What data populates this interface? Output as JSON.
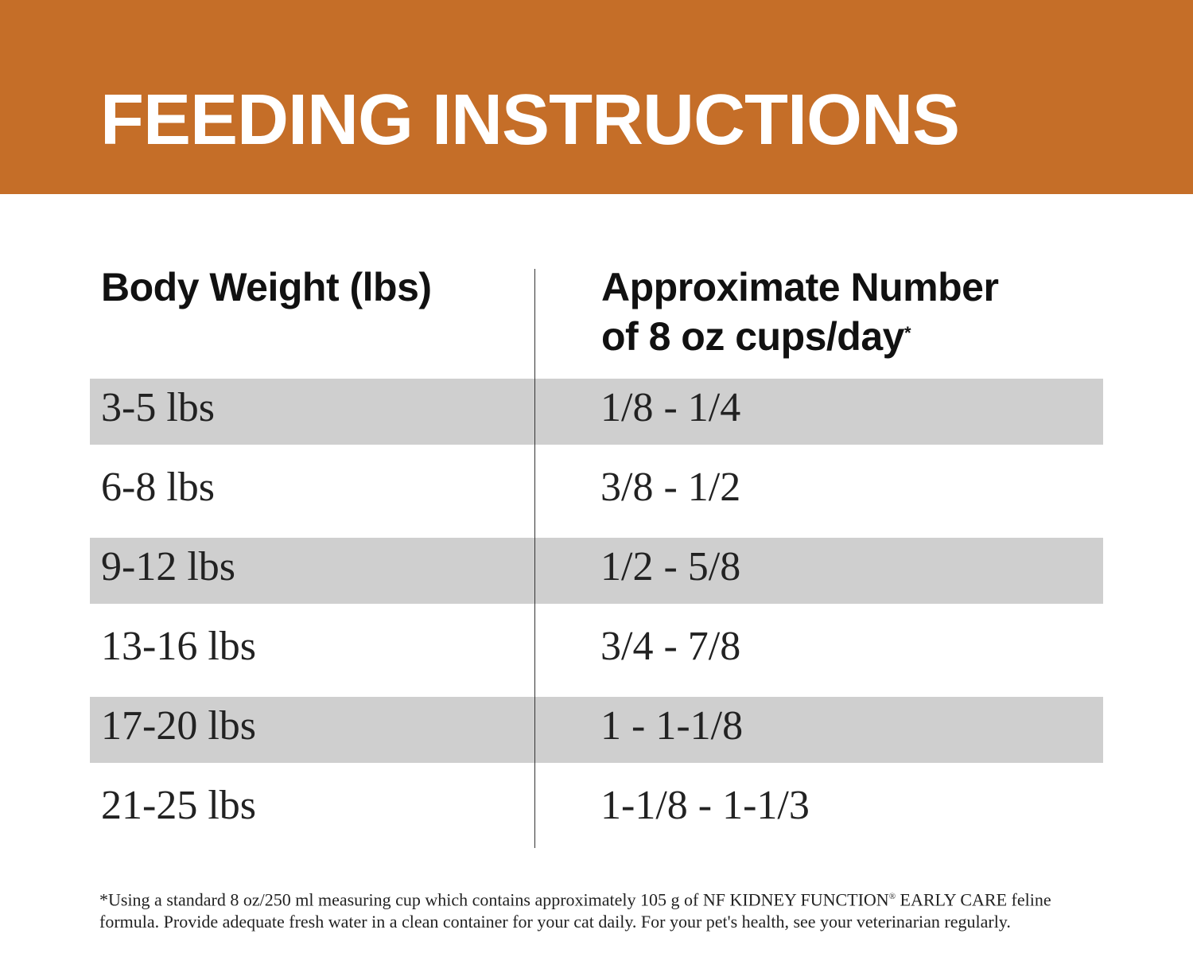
{
  "title": "FEEDING INSTRUCTIONS",
  "colors": {
    "banner": "#C56E28",
    "row_shade": "#CFCFCF"
  },
  "table": {
    "headers": {
      "col1": "Body Weight (lbs)",
      "col2_line1": "Approximate Number",
      "col2_line2": "of 8 oz cups/day",
      "col2_mark": "*"
    },
    "rows": [
      {
        "weight": "3-5 lbs",
        "cups": "1/8 - 1/4"
      },
      {
        "weight": "6-8 lbs",
        "cups": "3/8 - 1/2"
      },
      {
        "weight": "9-12 lbs",
        "cups": "1/2 - 5/8"
      },
      {
        "weight": "13-16 lbs",
        "cups": "3/4 - 7/8"
      },
      {
        "weight": "17-20 lbs",
        "cups": "1 - 1-1/8"
      },
      {
        "weight": "21-25 lbs",
        "cups": "1-1/8 - 1-1/3"
      }
    ]
  },
  "footnote": {
    "part1": "*Using a standard 8 oz/250 ml measuring cup which contains approximately 105 g of NF KIDNEY FUNCTION",
    "reg": "®",
    "part2": " EARLY CARE feline formula. Provide adequate fresh water in a clean container for your cat daily. For your pet's health, see your veterinarian regularly."
  }
}
